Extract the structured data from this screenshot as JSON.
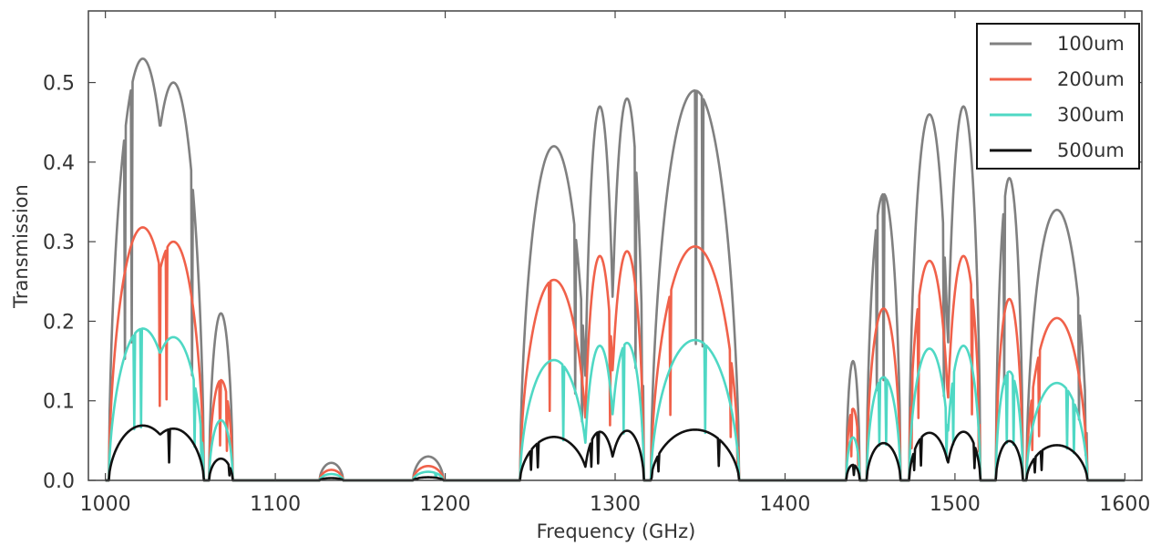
{
  "chart_data": {
    "type": "line",
    "title": "",
    "xlabel": "Frequency (GHz)",
    "ylabel": "Transmission",
    "xlim": [
      990,
      1610
    ],
    "ylim": [
      0,
      0.59
    ],
    "x_ticks": [
      1000,
      1100,
      1200,
      1300,
      1400,
      1500,
      1600
    ],
    "x_tick_labels": [
      "1000",
      "1100",
      "1200",
      "1300",
      "1400",
      "1500",
      "1600"
    ],
    "y_ticks": [
      0.0,
      0.1,
      0.2,
      0.3,
      0.4,
      0.5
    ],
    "y_tick_labels": [
      "0.0",
      "0.1",
      "0.2",
      "0.3",
      "0.4",
      "0.5"
    ],
    "grid": false,
    "legend_position": "top-right",
    "peaks_100um": [
      {
        "c": 1022,
        "w": 20,
        "h": 0.53
      },
      {
        "c": 1040,
        "w": 18,
        "h": 0.5
      },
      {
        "c": 1068,
        "w": 7,
        "h": 0.21
      },
      {
        "c": 1133,
        "w": 7,
        "h": 0.022
      },
      {
        "c": 1190,
        "w": 9,
        "h": 0.03
      },
      {
        "c": 1264,
        "w": 20,
        "h": 0.42
      },
      {
        "c": 1291,
        "w": 9,
        "h": 0.47
      },
      {
        "c": 1307,
        "w": 10,
        "h": 0.48
      },
      {
        "c": 1347,
        "w": 26,
        "h": 0.49
      },
      {
        "c": 1440,
        "w": 4,
        "h": 0.15
      },
      {
        "c": 1458,
        "w": 10,
        "h": 0.36
      },
      {
        "c": 1485,
        "w": 12,
        "h": 0.46
      },
      {
        "c": 1505,
        "w": 10,
        "h": 0.47
      },
      {
        "c": 1532,
        "w": 8,
        "h": 0.38
      },
      {
        "c": 1560,
        "w": 18,
        "h": 0.34
      }
    ],
    "series": [
      {
        "name": "100um",
        "color": "#808080",
        "scale": 1.0
      },
      {
        "name": "200um",
        "color": "#f0614a",
        "scale": 0.6
      },
      {
        "name": "300um",
        "color": "#4fd8c4",
        "scale": 0.36
      },
      {
        "name": "500um",
        "color": "#111111",
        "scale": 0.13
      }
    ]
  }
}
